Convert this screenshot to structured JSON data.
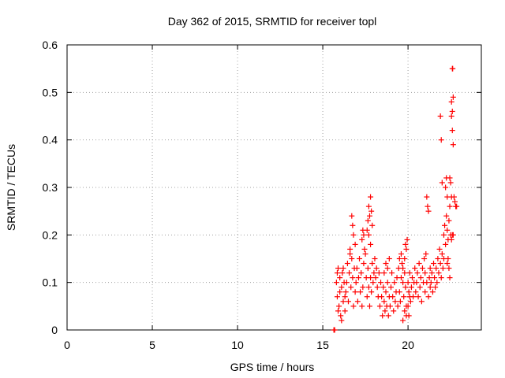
{
  "chart_data": {
    "type": "scatter",
    "title": "Day 362 of 2015, SRMTID for receiver topl",
    "xlabel": "GPS time / hours",
    "ylabel": "SRMTID / TECUs",
    "xlim": [
      0,
      24.3
    ],
    "ylim": [
      0,
      0.6
    ],
    "xticks": [
      0,
      5,
      10,
      15,
      20
    ],
    "yticks": [
      0,
      0.1,
      0.2,
      0.3,
      0.4,
      0.5,
      0.6
    ],
    "xtick_labels": [
      "0",
      "5",
      "10",
      "15",
      "20"
    ],
    "ytick_labels": [
      "0",
      "0.1",
      "0.2",
      "0.3",
      "0.4",
      "0.5",
      "0.6"
    ],
    "grid": true,
    "marker": "+",
    "color": "#ff0000",
    "series": [
      {
        "name": "SRMTID",
        "points": [
          [
            15.65,
            0.0
          ],
          [
            15.7,
            0.0
          ],
          [
            15.8,
            0.1
          ],
          [
            15.85,
            0.07
          ],
          [
            15.9,
            0.13
          ],
          [
            15.95,
            0.05
          ],
          [
            16.0,
            0.11
          ],
          [
            16.05,
            0.03
          ],
          [
            16.1,
            0.09
          ],
          [
            16.15,
            0.12
          ],
          [
            16.2,
            0.06
          ],
          [
            16.25,
            0.1
          ],
          [
            16.3,
            0.04
          ],
          [
            16.35,
            0.08
          ],
          [
            15.85,
            0.12
          ],
          [
            15.9,
            0.04
          ],
          [
            16.0,
            0.08
          ],
          [
            16.1,
            0.02
          ],
          [
            16.2,
            0.13
          ],
          [
            16.3,
            0.07
          ],
          [
            16.4,
            0.1
          ],
          [
            16.45,
            0.14
          ],
          [
            16.5,
            0.06
          ],
          [
            16.55,
            0.12
          ],
          [
            16.6,
            0.17
          ],
          [
            16.65,
            0.09
          ],
          [
            16.7,
            0.15
          ],
          [
            16.75,
            0.11
          ],
          [
            16.8,
            0.05
          ],
          [
            16.85,
            0.13
          ],
          [
            16.9,
            0.08
          ],
          [
            16.7,
            0.24
          ],
          [
            16.75,
            0.22
          ],
          [
            16.8,
            0.2
          ],
          [
            16.6,
            0.16
          ],
          [
            16.9,
            0.18
          ],
          [
            16.95,
            0.1
          ],
          [
            17.0,
            0.13
          ],
          [
            17.05,
            0.06
          ],
          [
            17.1,
            0.11
          ],
          [
            17.15,
            0.15
          ],
          [
            17.2,
            0.08
          ],
          [
            17.25,
            0.12
          ],
          [
            17.3,
            0.05
          ],
          [
            17.35,
            0.09
          ],
          [
            17.4,
            0.14
          ],
          [
            17.3,
            0.19
          ],
          [
            17.35,
            0.21
          ],
          [
            17.4,
            0.2
          ],
          [
            17.45,
            0.17
          ],
          [
            17.5,
            0.16
          ],
          [
            17.6,
            0.21
          ],
          [
            17.65,
            0.23
          ],
          [
            17.7,
            0.26
          ],
          [
            17.75,
            0.24
          ],
          [
            17.8,
            0.28
          ],
          [
            17.85,
            0.25
          ],
          [
            17.9,
            0.22
          ],
          [
            17.7,
            0.2
          ],
          [
            17.8,
            0.18
          ],
          [
            17.55,
            0.11
          ],
          [
            17.6,
            0.07
          ],
          [
            17.65,
            0.13
          ],
          [
            17.7,
            0.09
          ],
          [
            17.75,
            0.05
          ],
          [
            17.8,
            0.11
          ],
          [
            17.85,
            0.08
          ],
          [
            17.9,
            0.14
          ],
          [
            17.95,
            0.1
          ],
          [
            18.0,
            0.12
          ],
          [
            18.05,
            0.15
          ],
          [
            18.1,
            0.11
          ],
          [
            18.15,
            0.13
          ],
          [
            18.2,
            0.09
          ],
          [
            18.25,
            0.07
          ],
          [
            18.3,
            0.12
          ],
          [
            18.35,
            0.05
          ],
          [
            18.4,
            0.1
          ],
          [
            18.45,
            0.07
          ],
          [
            18.5,
            0.03
          ],
          [
            18.55,
            0.09
          ],
          [
            18.6,
            0.06
          ],
          [
            18.65,
            0.04
          ],
          [
            18.7,
            0.08
          ],
          [
            18.75,
            0.05
          ],
          [
            18.8,
            0.1
          ],
          [
            18.85,
            0.03
          ],
          [
            18.9,
            0.07
          ],
          [
            18.6,
            0.12
          ],
          [
            18.7,
            0.14
          ],
          [
            18.8,
            0.13
          ],
          [
            18.9,
            0.15
          ],
          [
            18.95,
            0.05
          ],
          [
            19.0,
            0.09
          ],
          [
            19.05,
            0.12
          ],
          [
            19.1,
            0.07
          ],
          [
            19.15,
            0.04
          ],
          [
            19.2,
            0.1
          ],
          [
            19.25,
            0.06
          ],
          [
            19.3,
            0.08
          ],
          [
            19.35,
            0.11
          ],
          [
            19.4,
            0.05
          ],
          [
            19.45,
            0.13
          ],
          [
            19.5,
            0.08
          ],
          [
            19.55,
            0.06
          ],
          [
            19.6,
            0.11
          ],
          [
            19.65,
            0.14
          ],
          [
            19.7,
            0.1
          ],
          [
            19.75,
            0.07
          ],
          [
            19.8,
            0.12
          ],
          [
            19.85,
            0.09
          ],
          [
            19.9,
            0.05
          ],
          [
            19.5,
            0.15
          ],
          [
            19.6,
            0.16
          ],
          [
            19.7,
            0.13
          ],
          [
            19.8,
            0.15
          ],
          [
            19.85,
            0.18
          ],
          [
            19.9,
            0.17
          ],
          [
            19.95,
            0.19
          ],
          [
            19.7,
            0.02
          ],
          [
            19.8,
            0.04
          ],
          [
            19.9,
            0.03
          ],
          [
            20.0,
            0.05
          ],
          [
            20.05,
            0.03
          ],
          [
            20.1,
            0.07
          ],
          [
            20.0,
            0.1
          ],
          [
            20.05,
            0.08
          ],
          [
            20.1,
            0.12
          ],
          [
            20.15,
            0.06
          ],
          [
            20.2,
            0.09
          ],
          [
            20.25,
            0.11
          ],
          [
            20.3,
            0.07
          ],
          [
            20.35,
            0.1
          ],
          [
            20.4,
            0.13
          ],
          [
            20.45,
            0.08
          ],
          [
            20.5,
            0.1
          ],
          [
            20.55,
            0.12
          ],
          [
            20.6,
            0.07
          ],
          [
            20.65,
            0.14
          ],
          [
            20.7,
            0.09
          ],
          [
            20.75,
            0.11
          ],
          [
            20.8,
            0.06
          ],
          [
            20.85,
            0.13
          ],
          [
            20.9,
            0.1
          ],
          [
            20.95,
            0.15
          ],
          [
            21.0,
            0.12
          ],
          [
            21.05,
            0.16
          ],
          [
            21.1,
            0.28
          ],
          [
            21.15,
            0.26
          ],
          [
            21.2,
            0.25
          ],
          [
            21.25,
            0.11
          ],
          [
            21.3,
            0.09
          ],
          [
            21.0,
            0.08
          ],
          [
            21.1,
            0.1
          ],
          [
            21.2,
            0.07
          ],
          [
            21.3,
            0.13
          ],
          [
            21.35,
            0.1
          ],
          [
            21.4,
            0.12
          ],
          [
            21.45,
            0.08
          ],
          [
            21.5,
            0.14
          ],
          [
            21.55,
            0.11
          ],
          [
            21.6,
            0.09
          ],
          [
            21.65,
            0.13
          ],
          [
            21.7,
            0.1
          ],
          [
            21.75,
            0.15
          ],
          [
            21.8,
            0.12
          ],
          [
            21.85,
            0.17
          ],
          [
            21.9,
            0.14
          ],
          [
            21.95,
            0.11
          ],
          [
            22.0,
            0.16
          ],
          [
            22.05,
            0.13
          ],
          [
            22.1,
            0.15
          ],
          [
            21.9,
            0.45
          ],
          [
            21.95,
            0.4
          ],
          [
            22.0,
            0.31
          ],
          [
            22.1,
            0.2
          ],
          [
            22.15,
            0.22
          ],
          [
            22.2,
            0.18
          ],
          [
            22.25,
            0.24
          ],
          [
            22.3,
            0.21
          ],
          [
            22.35,
            0.19
          ],
          [
            22.4,
            0.23
          ],
          [
            22.45,
            0.26
          ],
          [
            22.2,
            0.3
          ],
          [
            22.25,
            0.32
          ],
          [
            22.3,
            0.28
          ],
          [
            22.45,
            0.32
          ],
          [
            22.5,
            0.31
          ],
          [
            22.55,
            0.28
          ],
          [
            22.6,
            0.55
          ],
          [
            22.62,
            0.55
          ],
          [
            22.55,
            0.48
          ],
          [
            22.6,
            0.46
          ],
          [
            22.65,
            0.49
          ],
          [
            22.55,
            0.45
          ],
          [
            22.6,
            0.42
          ],
          [
            22.65,
            0.39
          ],
          [
            22.7,
            0.28
          ],
          [
            22.75,
            0.27
          ],
          [
            22.8,
            0.26
          ],
          [
            22.85,
            0.26
          ],
          [
            22.3,
            0.14
          ],
          [
            22.35,
            0.15
          ],
          [
            22.4,
            0.13
          ],
          [
            22.45,
            0.11
          ],
          [
            22.5,
            0.2
          ],
          [
            22.55,
            0.19
          ],
          [
            22.6,
            0.2
          ],
          [
            22.65,
            0.2
          ]
        ]
      }
    ]
  }
}
